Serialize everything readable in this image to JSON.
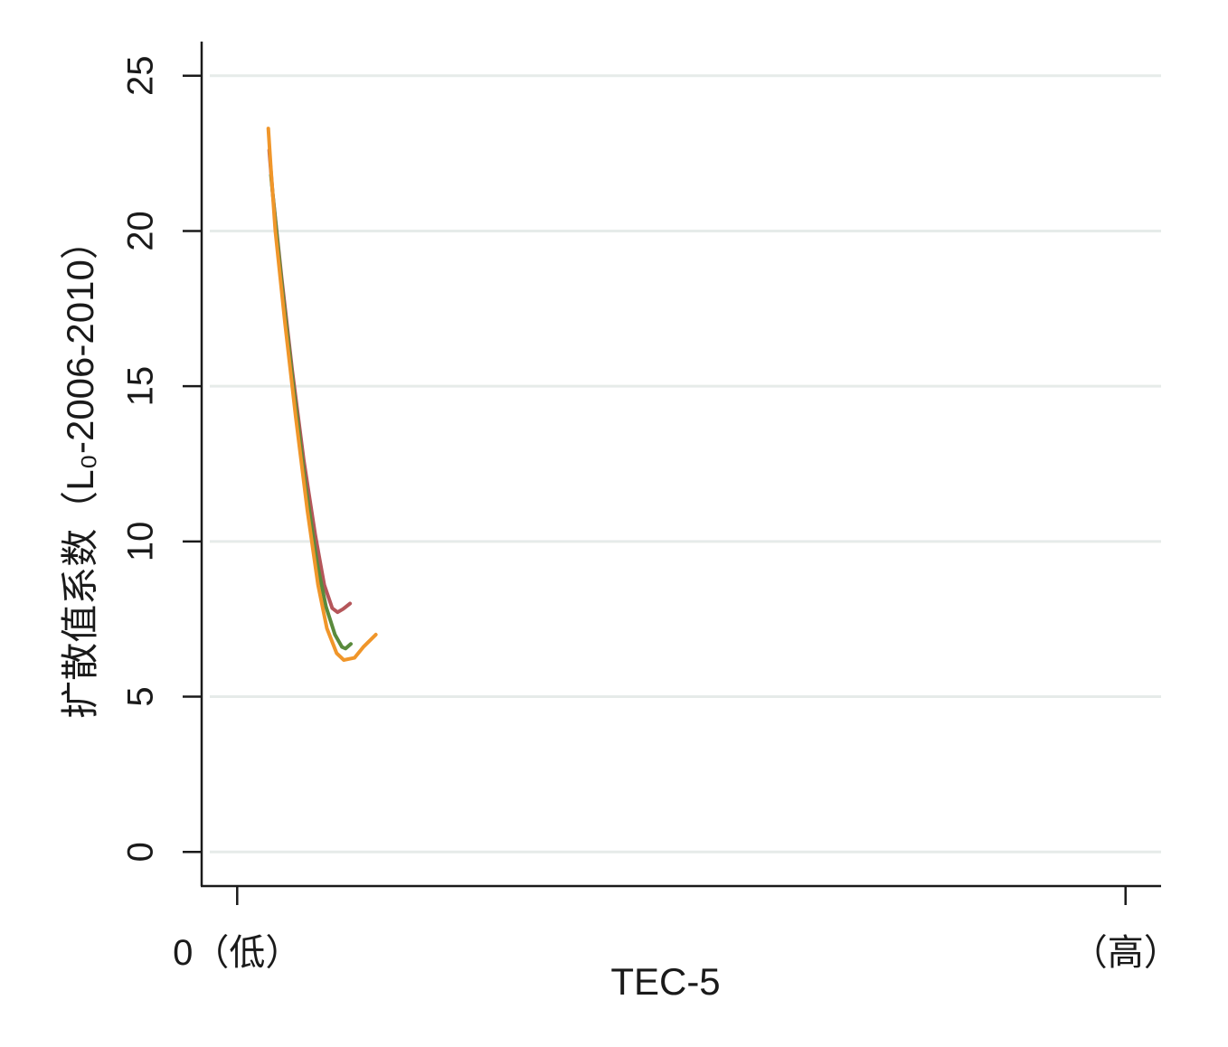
{
  "chart_data": {
    "type": "line",
    "xlabel": "TEC-5",
    "ylabel": "扩散值系数（L₀-2006-2010）",
    "x_tick_labels": [
      "0（低）",
      "（高）"
    ],
    "y_ticks": [
      0,
      5,
      10,
      15,
      20,
      25
    ],
    "ylim": [
      -1.1,
      26.1
    ],
    "xlim": [
      -0.04,
      1.04
    ],
    "grid": "horizontal",
    "legend": "none",
    "series": [
      {
        "color": "#b5565a",
        "points": [
          [
            0.036,
            22.6
          ],
          [
            0.04,
            21.2
          ],
          [
            0.05,
            18.5
          ],
          [
            0.062,
            15.5
          ],
          [
            0.075,
            12.6
          ],
          [
            0.088,
            10.2
          ],
          [
            0.098,
            8.6
          ],
          [
            0.107,
            7.85
          ],
          [
            0.113,
            7.72
          ],
          [
            0.119,
            7.82
          ],
          [
            0.127,
            8.0
          ]
        ]
      },
      {
        "color": "#5a8a3c",
        "points": [
          [
            0.038,
            21.8
          ],
          [
            0.042,
            20.6
          ],
          [
            0.052,
            17.8
          ],
          [
            0.064,
            14.8
          ],
          [
            0.077,
            11.8
          ],
          [
            0.09,
            9.3
          ],
          [
            0.1,
            7.9
          ],
          [
            0.11,
            7.0
          ],
          [
            0.118,
            6.6
          ],
          [
            0.122,
            6.55
          ],
          [
            0.128,
            6.7
          ]
        ]
      },
      {
        "color": "#f0962a",
        "points": [
          [
            0.035,
            23.3
          ],
          [
            0.038,
            22.0
          ],
          [
            0.043,
            20.0
          ],
          [
            0.054,
            17.0
          ],
          [
            0.066,
            14.0
          ],
          [
            0.079,
            11.0
          ],
          [
            0.091,
            8.6
          ],
          [
            0.101,
            7.2
          ],
          [
            0.112,
            6.4
          ],
          [
            0.12,
            6.18
          ],
          [
            0.132,
            6.25
          ],
          [
            0.142,
            6.6
          ],
          [
            0.156,
            7.0
          ]
        ]
      }
    ]
  }
}
